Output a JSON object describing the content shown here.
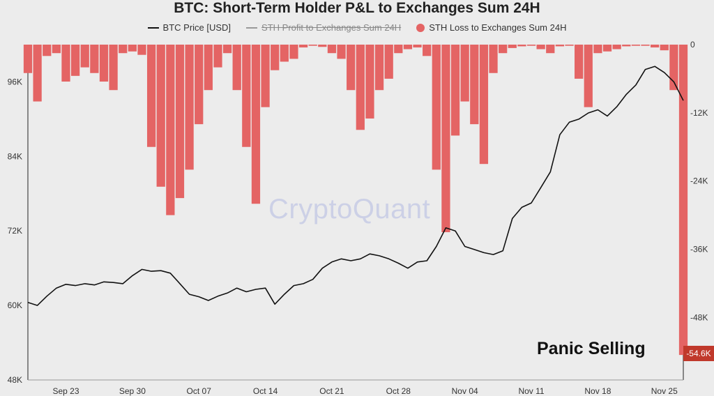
{
  "title": "BTC: Short-Term Holder P&L to Exchanges Sum 24H",
  "legend": [
    {
      "label": "BTC Price [USD]",
      "marker": "line",
      "color": "#111111",
      "struck": false
    },
    {
      "label": "STH Profit to Exchanges Sum 24H",
      "marker": "line",
      "color": "#999999",
      "struck": true
    },
    {
      "label": "STH Loss to Exchanges Sum 24H",
      "marker": "dot",
      "color": "#e46464",
      "struck": false
    }
  ],
  "watermark": "CryptoQuant",
  "annotation": "Panic Selling",
  "last_value_badge": "-54.6K",
  "chart_data": {
    "type": "line",
    "title": "BTC: Short-Term Holder P&L to Exchanges Sum 24H",
    "x_ticks": [
      "Sep 23",
      "Sep 30",
      "Oct 07",
      "Oct 14",
      "Oct 21",
      "Oct 28",
      "Nov 04",
      "Nov 11",
      "Nov 18",
      "Nov 25"
    ],
    "x_range": [
      "2025-09-19",
      "2025-11-27"
    ],
    "y_left": {
      "ticks": [
        "48K",
        "60K",
        "72K",
        "84K",
        "96K"
      ],
      "range": [
        48000,
        102000
      ]
    },
    "y_right": {
      "ticks": [
        "0",
        "-12K",
        "-24K",
        "-36K",
        "-48K"
      ],
      "range": [
        -59000,
        0
      ]
    },
    "grid": false,
    "legend_position": "top",
    "series": [
      {
        "name": "BTC Price [USD]",
        "axis": "left",
        "color": "#111111",
        "points": [
          [
            "2025-09-19",
            60500
          ],
          [
            "2025-09-20",
            60000
          ],
          [
            "2025-09-21",
            61500
          ],
          [
            "2025-09-22",
            62800
          ],
          [
            "2025-09-23",
            63400
          ],
          [
            "2025-09-24",
            63200
          ],
          [
            "2025-09-25",
            63500
          ],
          [
            "2025-09-26",
            63300
          ],
          [
            "2025-09-27",
            63800
          ],
          [
            "2025-09-28",
            63700
          ],
          [
            "2025-09-29",
            63500
          ],
          [
            "2025-09-30",
            64800
          ],
          [
            "2025-10-01",
            65800
          ],
          [
            "2025-10-02",
            65500
          ],
          [
            "2025-10-03",
            65600
          ],
          [
            "2025-10-04",
            65200
          ],
          [
            "2025-10-05",
            63500
          ],
          [
            "2025-10-06",
            61800
          ],
          [
            "2025-10-07",
            61400
          ],
          [
            "2025-10-08",
            60800
          ],
          [
            "2025-10-09",
            61500
          ],
          [
            "2025-10-10",
            62000
          ],
          [
            "2025-10-11",
            62800
          ],
          [
            "2025-10-12",
            62200
          ],
          [
            "2025-10-13",
            62600
          ],
          [
            "2025-10-14",
            62800
          ],
          [
            "2025-10-15",
            60200
          ],
          [
            "2025-10-16",
            61800
          ],
          [
            "2025-10-17",
            63200
          ],
          [
            "2025-10-18",
            63500
          ],
          [
            "2025-10-19",
            64200
          ],
          [
            "2025-10-20",
            66000
          ],
          [
            "2025-10-21",
            67000
          ],
          [
            "2025-10-22",
            67500
          ],
          [
            "2025-10-23",
            67200
          ],
          [
            "2025-10-24",
            67500
          ],
          [
            "2025-10-25",
            68300
          ],
          [
            "2025-10-26",
            68000
          ],
          [
            "2025-10-27",
            67500
          ],
          [
            "2025-10-28",
            66800
          ],
          [
            "2025-10-29",
            66000
          ],
          [
            "2025-10-30",
            67000
          ],
          [
            "2025-10-31",
            67200
          ],
          [
            "2025-11-01",
            69500
          ],
          [
            "2025-11-02",
            72500
          ],
          [
            "2025-11-03",
            72000
          ],
          [
            "2025-11-04",
            69500
          ],
          [
            "2025-11-05",
            69000
          ],
          [
            "2025-11-06",
            68500
          ],
          [
            "2025-11-07",
            68200
          ],
          [
            "2025-11-08",
            68800
          ],
          [
            "2025-11-09",
            74000
          ],
          [
            "2025-11-10",
            75800
          ],
          [
            "2025-11-11",
            76500
          ],
          [
            "2025-11-12",
            79000
          ],
          [
            "2025-11-13",
            81500
          ],
          [
            "2025-11-14",
            87500
          ],
          [
            "2025-11-15",
            89500
          ],
          [
            "2025-11-16",
            90000
          ],
          [
            "2025-11-17",
            91000
          ],
          [
            "2025-11-18",
            91500
          ],
          [
            "2025-11-19",
            90500
          ],
          [
            "2025-11-20",
            92000
          ],
          [
            "2025-11-21",
            94000
          ],
          [
            "2025-11-22",
            95500
          ],
          [
            "2025-11-23",
            98000
          ],
          [
            "2025-11-24",
            98500
          ],
          [
            "2025-11-25",
            97500
          ],
          [
            "2025-11-26",
            96000
          ],
          [
            "2025-11-27",
            93000
          ]
        ]
      },
      {
        "name": "STH Loss to Exchanges Sum 24H",
        "axis": "right",
        "color": "#e46464",
        "points": [
          [
            "2025-09-19",
            -5000
          ],
          [
            "2025-09-20",
            -10000
          ],
          [
            "2025-09-21",
            -2000
          ],
          [
            "2025-09-22",
            -1500
          ],
          [
            "2025-09-23",
            -6500
          ],
          [
            "2025-09-24",
            -5500
          ],
          [
            "2025-09-25",
            -4000
          ],
          [
            "2025-09-26",
            -5000
          ],
          [
            "2025-09-27",
            -6500
          ],
          [
            "2025-09-28",
            -8000
          ],
          [
            "2025-09-29",
            -1500
          ],
          [
            "2025-09-30",
            -1200
          ],
          [
            "2025-10-01",
            -1800
          ],
          [
            "2025-10-02",
            -18000
          ],
          [
            "2025-10-03",
            -25000
          ],
          [
            "2025-10-04",
            -30000
          ],
          [
            "2025-10-05",
            -27000
          ],
          [
            "2025-10-06",
            -22000
          ],
          [
            "2025-10-07",
            -14000
          ],
          [
            "2025-10-08",
            -8000
          ],
          [
            "2025-10-09",
            -4000
          ],
          [
            "2025-10-10",
            -1500
          ],
          [
            "2025-10-11",
            -8000
          ],
          [
            "2025-10-12",
            -18000
          ],
          [
            "2025-10-13",
            -28000
          ],
          [
            "2025-10-14",
            -11000
          ],
          [
            "2025-10-15",
            -4500
          ],
          [
            "2025-10-16",
            -3000
          ],
          [
            "2025-10-17",
            -2500
          ],
          [
            "2025-10-18",
            -500
          ],
          [
            "2025-10-19",
            -200
          ],
          [
            "2025-10-20",
            -400
          ],
          [
            "2025-10-21",
            -1500
          ],
          [
            "2025-10-22",
            -2500
          ],
          [
            "2025-10-23",
            -8000
          ],
          [
            "2025-10-24",
            -15000
          ],
          [
            "2025-10-25",
            -13000
          ],
          [
            "2025-10-26",
            -8000
          ],
          [
            "2025-10-27",
            -6000
          ],
          [
            "2025-10-28",
            -1500
          ],
          [
            "2025-10-29",
            -800
          ],
          [
            "2025-10-30",
            -500
          ],
          [
            "2025-10-31",
            -2000
          ],
          [
            "2025-11-01",
            -22000
          ],
          [
            "2025-11-02",
            -33000
          ],
          [
            "2025-11-03",
            -16000
          ],
          [
            "2025-11-04",
            -10000
          ],
          [
            "2025-11-05",
            -14000
          ],
          [
            "2025-11-06",
            -21000
          ],
          [
            "2025-11-07",
            -5000
          ],
          [
            "2025-11-08",
            -1500
          ],
          [
            "2025-11-09",
            -600
          ],
          [
            "2025-11-10",
            -300
          ],
          [
            "2025-11-11",
            -200
          ],
          [
            "2025-11-12",
            -800
          ],
          [
            "2025-11-13",
            -1500
          ],
          [
            "2025-11-14",
            -300
          ],
          [
            "2025-11-15",
            -200
          ],
          [
            "2025-11-16",
            -6000
          ],
          [
            "2025-11-17",
            -11000
          ],
          [
            "2025-11-18",
            -1500
          ],
          [
            "2025-11-19",
            -1200
          ],
          [
            "2025-11-20",
            -800
          ],
          [
            "2025-11-21",
            -300
          ],
          [
            "2025-11-22",
            -200
          ],
          [
            "2025-11-23",
            -200
          ],
          [
            "2025-11-24",
            -500
          ],
          [
            "2025-11-25",
            -1000
          ],
          [
            "2025-11-26",
            -8000
          ],
          [
            "2025-11-27",
            -54600
          ]
        ]
      }
    ]
  }
}
